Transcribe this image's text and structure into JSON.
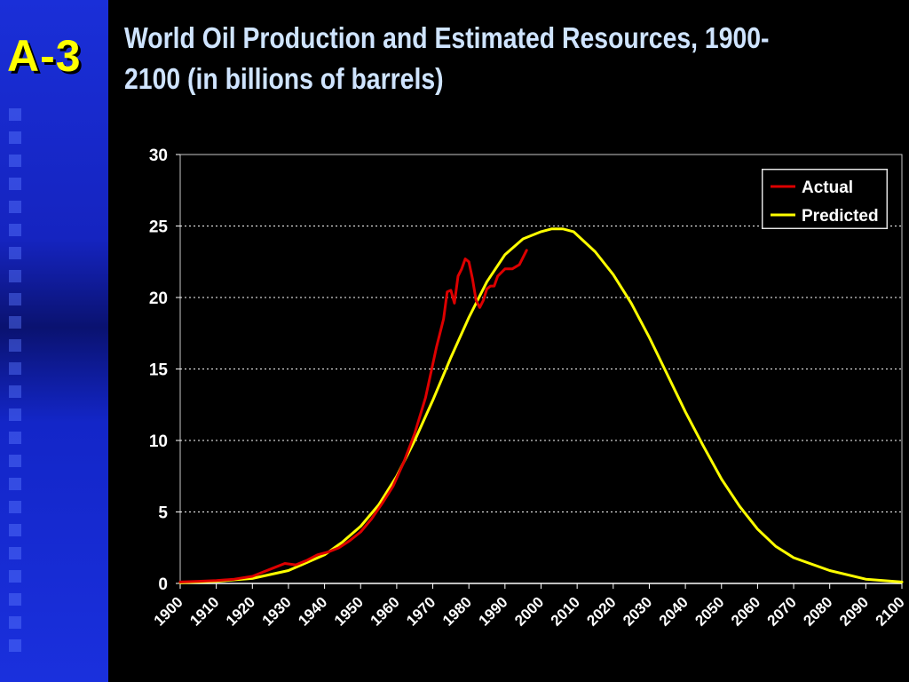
{
  "slide": {
    "label": "A-3",
    "title": "World Oil Production and Estimated Resources, 1900-2100 (in billions of barrels)"
  },
  "colors": {
    "background": "#000000",
    "sidebar": "#1a2fd8",
    "label": "#ffff00",
    "title": "#cfe4ff",
    "actual": "#dd0000",
    "predicted": "#ffff00"
  },
  "chart_data": {
    "type": "line",
    "title": "World Oil Production and Estimated Resources, 1900-2100 (in billions of barrels)",
    "xlabel": "",
    "ylabel": "",
    "xlim": [
      1900,
      2100
    ],
    "ylim": [
      0,
      30
    ],
    "x_ticks": [
      "1900",
      "1910",
      "1920",
      "1930",
      "1940",
      "1950",
      "1960",
      "1970",
      "1980",
      "1990",
      "2000",
      "2010",
      "2020",
      "2030",
      "2040",
      "2050",
      "2060",
      "2070",
      "2080",
      "2090",
      "2100"
    ],
    "y_ticks": [
      "0",
      "5",
      "10",
      "15",
      "20",
      "25",
      "30"
    ],
    "grid": "horizontal dotted",
    "legend_position": "top-right",
    "series": [
      {
        "name": "Actual",
        "x": [
          1900,
          1905,
          1910,
          1915,
          1920,
          1923,
          1926,
          1929,
          1932,
          1935,
          1938,
          1941,
          1944,
          1947,
          1950,
          1953,
          1956,
          1959,
          1962,
          1965,
          1968,
          1971,
          1973,
          1974,
          1975,
          1976,
          1977,
          1978,
          1979,
          1980,
          1981,
          1982,
          1983,
          1984,
          1985,
          1986,
          1987,
          1988,
          1990,
          1992,
          1994,
          1996
        ],
        "y": [
          0.1,
          0.15,
          0.2,
          0.3,
          0.5,
          0.8,
          1.1,
          1.4,
          1.3,
          1.6,
          2.0,
          2.2,
          2.5,
          3.0,
          3.6,
          4.5,
          5.6,
          6.8,
          8.5,
          10.5,
          13.0,
          16.5,
          18.5,
          20.4,
          20.5,
          19.6,
          21.5,
          22.0,
          22.7,
          22.5,
          21.3,
          19.8,
          19.3,
          19.8,
          20.6,
          20.8,
          20.8,
          21.5,
          22.0,
          22.0,
          22.3,
          23.3
        ]
      },
      {
        "name": "Predicted",
        "x": [
          1900,
          1910,
          1920,
          1930,
          1940,
          1945,
          1950,
          1955,
          1960,
          1965,
          1970,
          1975,
          1980,
          1985,
          1990,
          1995,
          2000,
          2003,
          2006,
          2009,
          2015,
          2020,
          2025,
          2030,
          2035,
          2040,
          2045,
          2050,
          2055,
          2060,
          2065,
          2070,
          2080,
          2090,
          2100
        ],
        "y": [
          0.05,
          0.15,
          0.35,
          0.9,
          2.0,
          2.9,
          4.0,
          5.5,
          7.5,
          10.0,
          12.8,
          15.8,
          18.6,
          21.1,
          23.0,
          24.1,
          24.6,
          24.8,
          24.8,
          24.6,
          23.2,
          21.6,
          19.6,
          17.2,
          14.6,
          12.0,
          9.6,
          7.3,
          5.4,
          3.8,
          2.6,
          1.8,
          0.9,
          0.3,
          0.1
        ]
      }
    ]
  }
}
